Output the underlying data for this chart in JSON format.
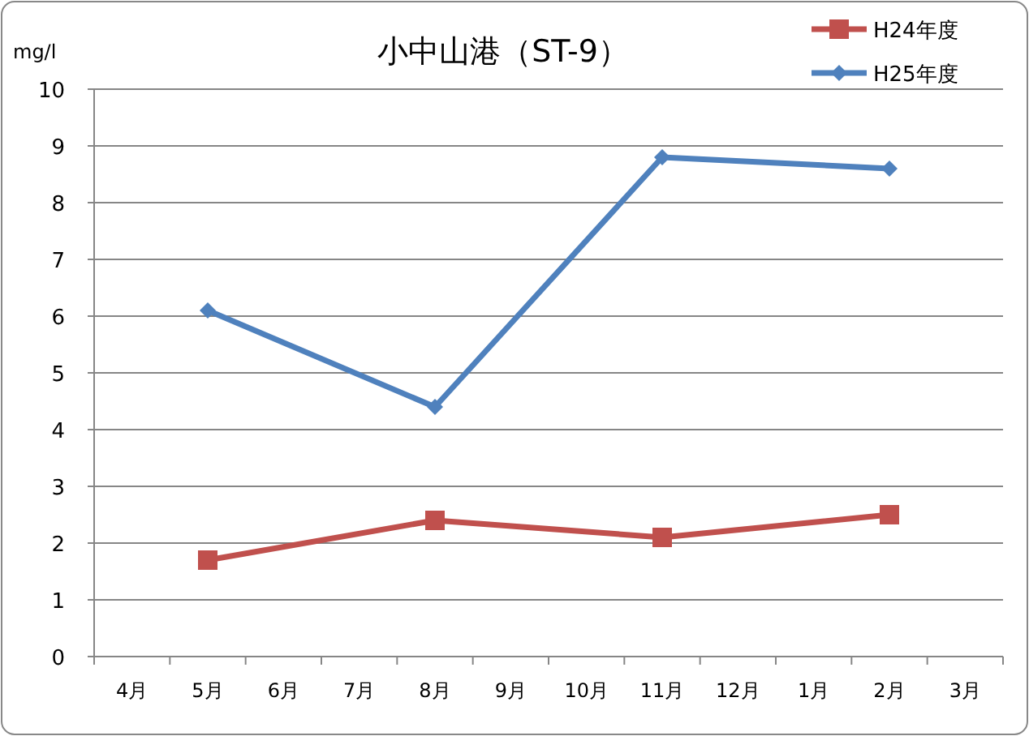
{
  "chart_data": {
    "type": "line",
    "title": "小中山港（ST-9）",
    "ylabel": "mg/l",
    "categories": [
      "4月",
      "5月",
      "6月",
      "7月",
      "8月",
      "9月",
      "10月",
      "11月",
      "12月",
      "1月",
      "2月",
      "3月"
    ],
    "series": [
      {
        "name": "H24年度",
        "color": "#c0504d",
        "marker": "square",
        "x": [
          "5月",
          "8月",
          "11月",
          "2月"
        ],
        "values": [
          1.7,
          2.4,
          2.1,
          2.5
        ]
      },
      {
        "name": "H25年度",
        "color": "#4f81bd",
        "marker": "diamond",
        "x": [
          "5月",
          "8月",
          "11月",
          "2月"
        ],
        "values": [
          6.1,
          4.4,
          8.8,
          8.6
        ]
      }
    ],
    "ylim": [
      0,
      10
    ],
    "yticks": [
      0,
      1,
      2,
      3,
      4,
      5,
      6,
      7,
      8,
      9,
      10
    ],
    "grid": "y",
    "legend": "top right"
  }
}
